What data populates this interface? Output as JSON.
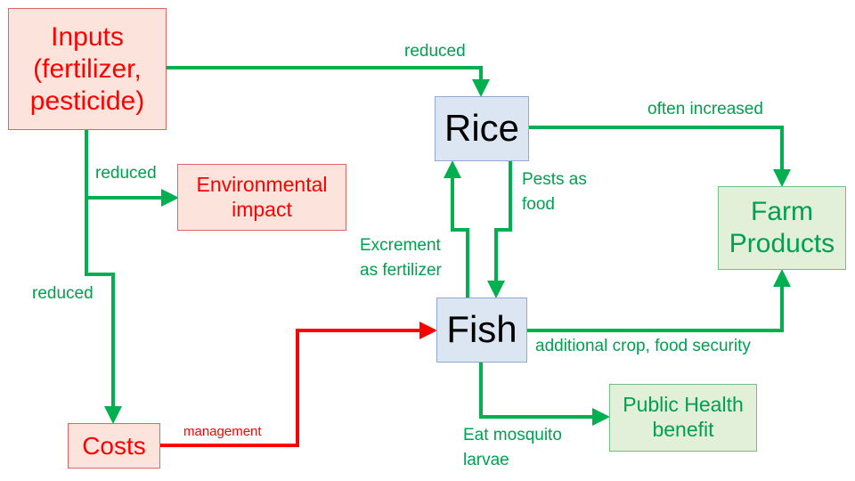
{
  "colors": {
    "positive": "#00b050",
    "negative": "#ff0000"
  },
  "nodes": {
    "inputs": "Inputs (fertilizer, pesticide)",
    "environmental": "Environmental impact",
    "costs": "Costs",
    "rice": "Rice",
    "fish": "Fish",
    "farm_products": "Farm Products",
    "public_health": "Public Health benefit"
  },
  "edges": {
    "inputs_rice": "reduced",
    "inputs_env": "reduced",
    "inputs_costs": "reduced",
    "costs_fish": "management",
    "rice_farm": "often increased",
    "rice_fish": "Pests as food",
    "fish_rice": "Excrement as fertilizer",
    "fish_farm": "additional crop, food security",
    "fish_health": "Eat mosquito larvae"
  }
}
